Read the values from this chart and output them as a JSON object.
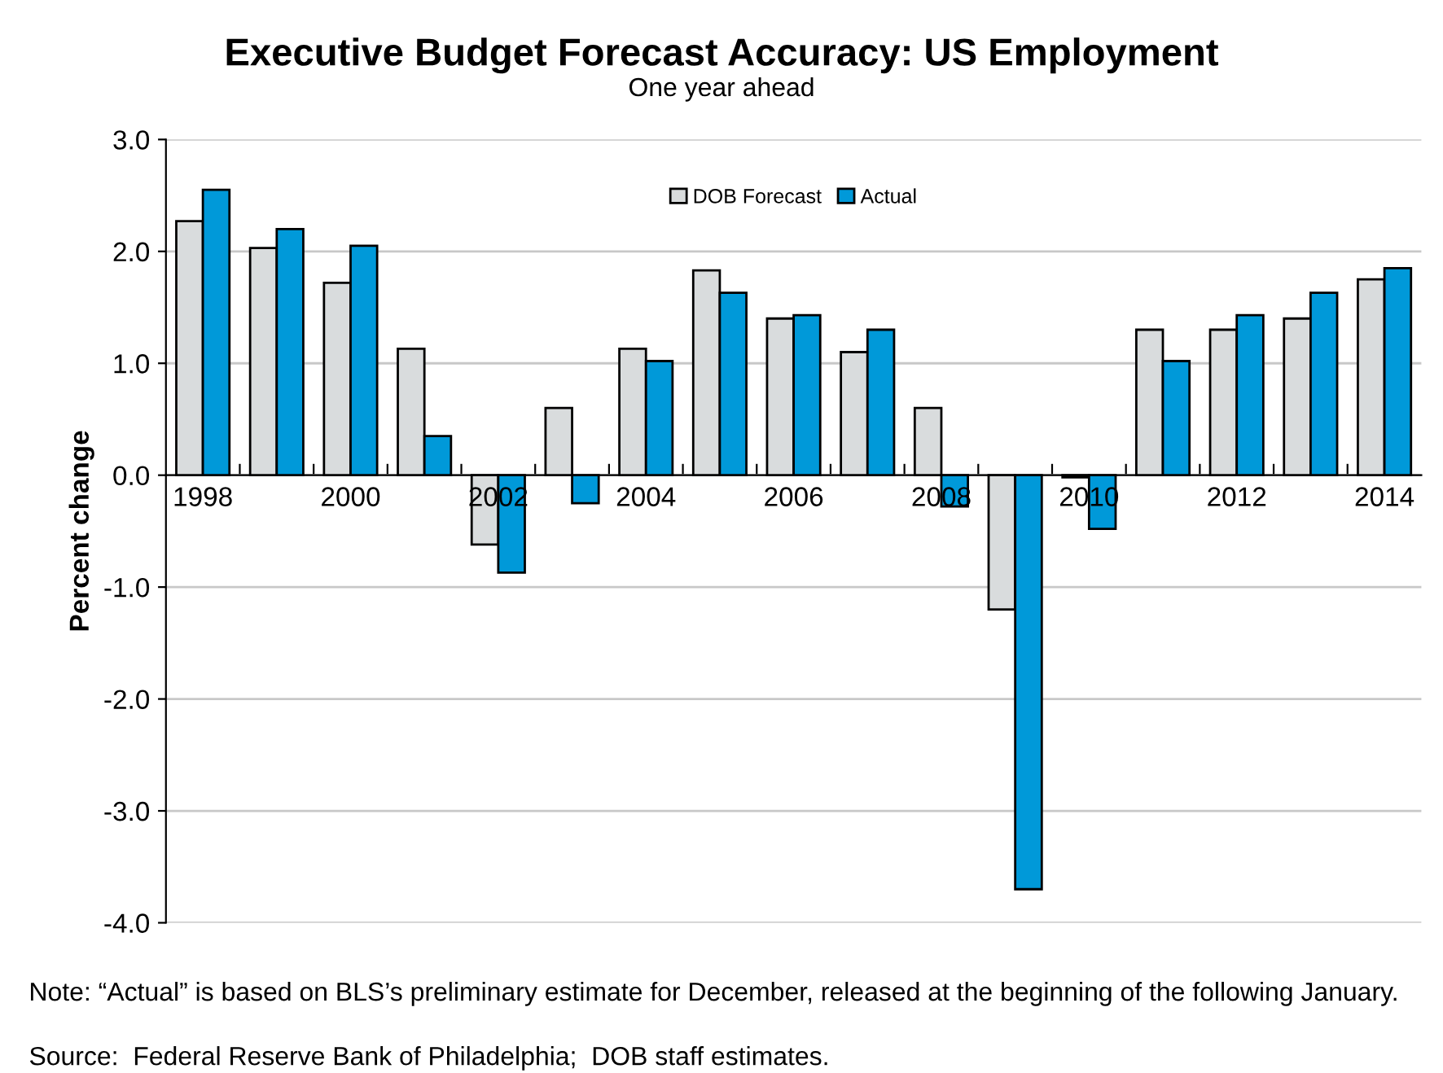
{
  "chart_data": {
    "type": "bar",
    "title": "Executive Budget Forecast Accuracy: US Employment",
    "subtitle": "One year ahead",
    "ylabel": "Percent change",
    "categories": [
      "1998",
      null,
      "2000",
      null,
      "2002",
      null,
      "2004",
      null,
      "2006",
      null,
      "2008",
      null,
      "2010",
      null,
      "2012",
      null,
      "2014"
    ],
    "series": [
      {
        "name": "DOB Forecast",
        "color": "#d9dcdd",
        "values": [
          2.27,
          2.03,
          1.72,
          1.13,
          -0.62,
          0.6,
          1.13,
          1.83,
          1.4,
          1.1,
          0.6,
          -1.2,
          -0.02,
          1.3,
          1.3,
          1.4,
          1.75
        ]
      },
      {
        "name": "Actual",
        "color": "#0099d9",
        "values": [
          2.55,
          2.2,
          2.05,
          0.35,
          -0.87,
          -0.25,
          1.02,
          1.63,
          1.43,
          1.3,
          -0.28,
          -3.7,
          -0.48,
          1.02,
          1.43,
          1.63,
          1.85
        ]
      }
    ],
    "ylim": [
      -4.0,
      3.0
    ],
    "yticks": [
      {
        "value": -4,
        "label": "-4.0"
      },
      {
        "value": -3,
        "label": "-3.0"
      },
      {
        "value": -2,
        "label": "-2.0"
      },
      {
        "value": -1,
        "label": "-1.0"
      },
      {
        "value": 0,
        "label": "0.0"
      },
      {
        "value": 1,
        "label": "1.0"
      },
      {
        "value": 2,
        "label": "2.0"
      },
      {
        "value": 3,
        "label": "3.0"
      }
    ],
    "grid": "y",
    "legend": "top",
    "annotations": [
      "Note: “Actual” is based on BLS’s preliminary estimate for December, released at the beginning of the following January.",
      "Source:  Federal Reserve Bank of Philadelphia;  DOB staff estimates."
    ]
  }
}
